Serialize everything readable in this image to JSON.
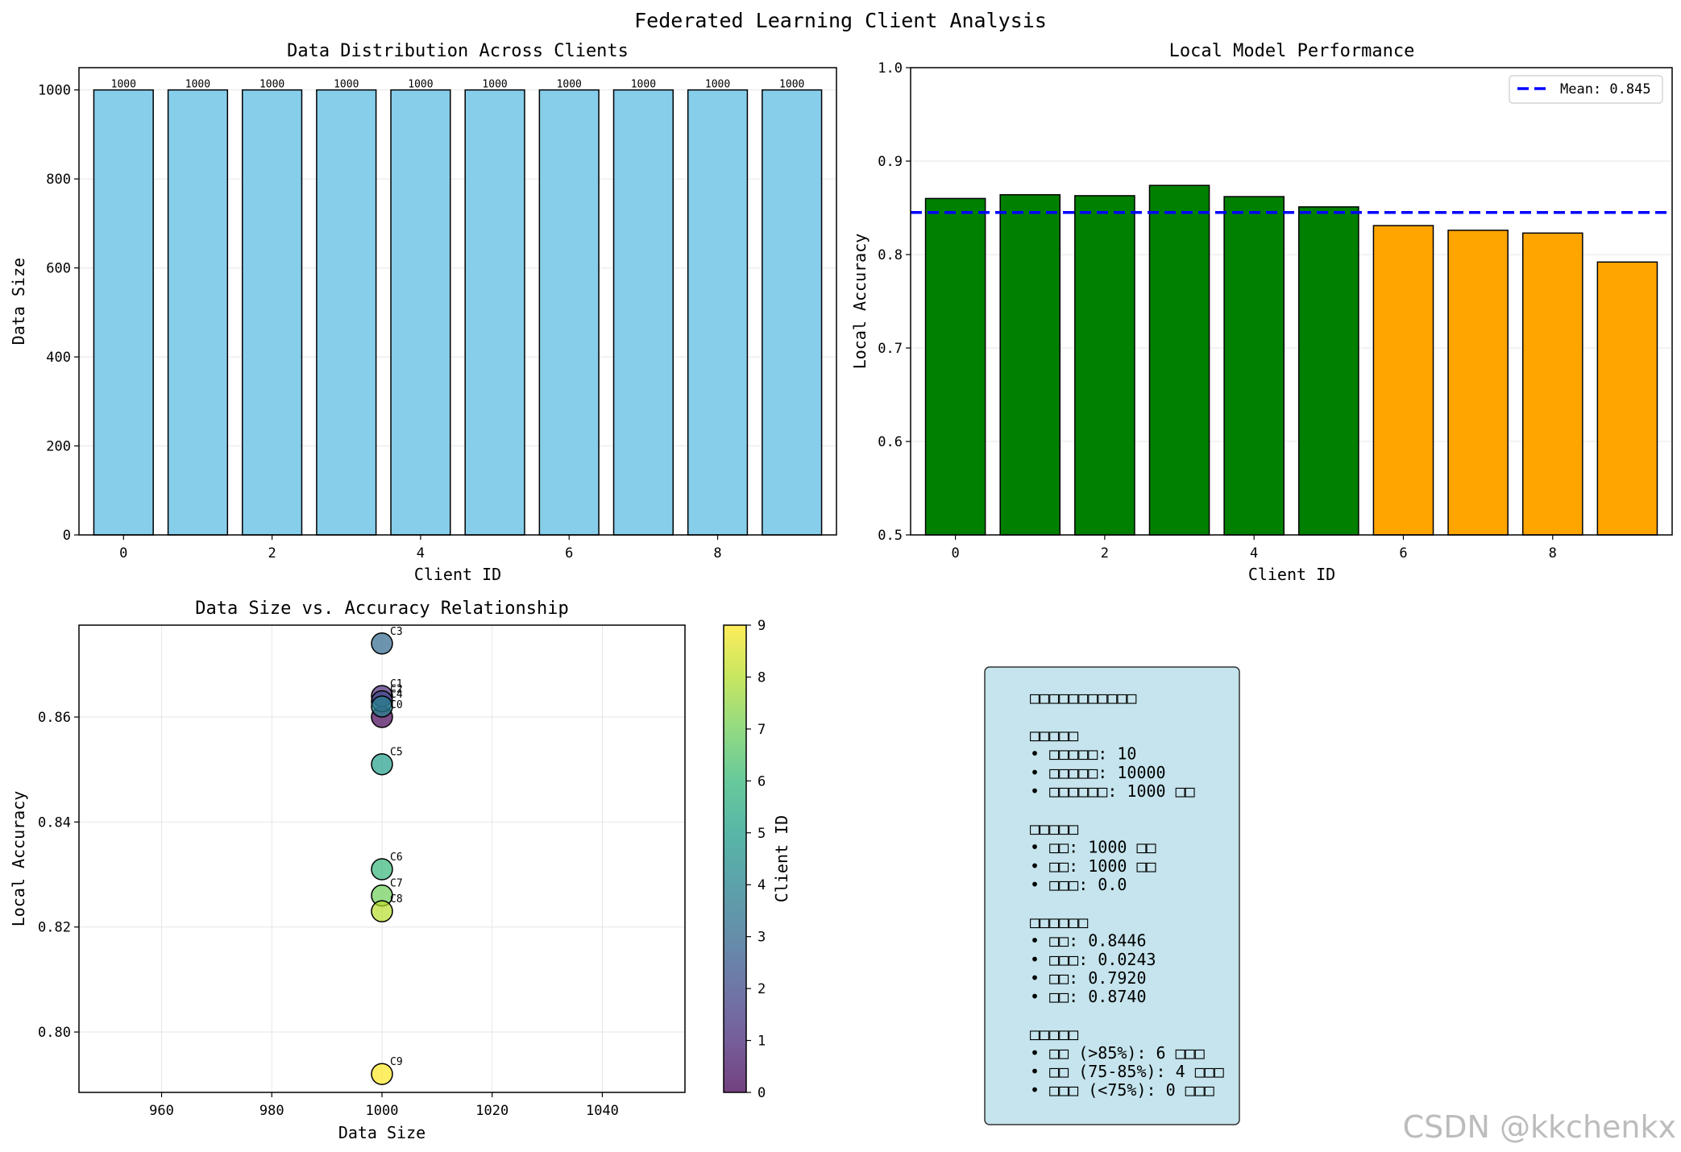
{
  "figure": {
    "title": "Federated Learning Client Analysis",
    "watermark": "CSDN @kkchenkx"
  },
  "chart_data": [
    {
      "type": "bar",
      "title": "Data Distribution Across Clients",
      "xlabel": "Client ID",
      "ylabel": "Data Size",
      "x": [
        0,
        1,
        2,
        3,
        4,
        5,
        6,
        7,
        8,
        9
      ],
      "values": [
        1000,
        1000,
        1000,
        1000,
        1000,
        1000,
        1000,
        1000,
        1000,
        1000
      ],
      "data_labels": [
        "1000",
        "1000",
        "1000",
        "1000",
        "1000",
        "1000",
        "1000",
        "1000",
        "1000",
        "1000"
      ],
      "bar_color": "#87ceeb",
      "ylim": [
        0,
        1050
      ],
      "xlim": [
        -0.6,
        9.6
      ],
      "yticks": [
        0,
        200,
        400,
        600,
        800,
        1000
      ],
      "xticks": [
        0,
        2,
        4,
        6,
        8
      ],
      "grid": true
    },
    {
      "type": "bar",
      "title": "Local Model Performance",
      "xlabel": "Client ID",
      "ylabel": "Local Accuracy",
      "x": [
        0,
        1,
        2,
        3,
        4,
        5,
        6,
        7,
        8,
        9
      ],
      "values": [
        0.86,
        0.864,
        0.863,
        0.874,
        0.862,
        0.851,
        0.831,
        0.826,
        0.823,
        0.792
      ],
      "colors": [
        "#008000",
        "#008000",
        "#008000",
        "#008000",
        "#008000",
        "#008000",
        "#ffa500",
        "#ffa500",
        "#ffa500",
        "#ffa500"
      ],
      "mean_line": {
        "value": 0.845,
        "label": "Mean: 0.845",
        "color": "#0000ff"
      },
      "legend": "top-right",
      "ylim": [
        0.5,
        1.0
      ],
      "xlim": [
        -0.6,
        9.6
      ],
      "yticks": [
        "0.5",
        "0.6",
        "0.7",
        "0.8",
        "0.9",
        "1.0"
      ],
      "xticks": [
        0,
        2,
        4,
        6,
        8
      ],
      "grid": true
    },
    {
      "type": "scatter",
      "title": "Data Size vs. Accuracy Relationship",
      "xlabel": "Data Size",
      "ylabel": "Local Accuracy",
      "colorbar_label": "Client ID",
      "colormap": "viridis",
      "points": [
        {
          "label": "C0",
          "client": 0,
          "x": 1000,
          "y": 0.86
        },
        {
          "label": "C1",
          "client": 1,
          "x": 1000,
          "y": 0.864
        },
        {
          "label": "C2",
          "client": 2,
          "x": 1000,
          "y": 0.863
        },
        {
          "label": "C3",
          "client": 3,
          "x": 1000,
          "y": 0.874
        },
        {
          "label": "C4",
          "client": 4,
          "x": 1000,
          "y": 0.862
        },
        {
          "label": "C5",
          "client": 5,
          "x": 1000,
          "y": 0.851
        },
        {
          "label": "C6",
          "client": 6,
          "x": 1000,
          "y": 0.831
        },
        {
          "label": "C7",
          "client": 7,
          "x": 1000,
          "y": 0.826
        },
        {
          "label": "C8",
          "client": 8,
          "x": 1000,
          "y": 0.823
        },
        {
          "label": "C9",
          "client": 9,
          "x": 1000,
          "y": 0.792
        }
      ],
      "xlim": [
        945,
        1055
      ],
      "ylim": [
        0.7885,
        0.8775
      ],
      "xticks": [
        960,
        980,
        1000,
        1020,
        1040
      ],
      "yticks": [
        "0.80",
        "0.82",
        "0.84",
        "0.86"
      ],
      "colorbar_ticks": [
        0,
        1,
        2,
        3,
        4,
        5,
        6,
        7,
        8,
        9
      ],
      "grid": true
    }
  ],
  "summary_box": {
    "lines": [
      "□□□□□□□□□□□",
      "",
      "□□□□□",
      "• □□□□□: 10",
      "• □□□□□: 10000",
      "• □□□□□□: 1000 □□",
      "",
      "□□□□□",
      "• □□: 1000 □□",
      "• □□: 1000 □□",
      "• □□□: 0.0",
      "",
      "□□□□□□",
      "• □□: 0.8446",
      "• □□□: 0.0243",
      "• □□: 0.7920",
      "• □□: 0.8740",
      "",
      "□□□□□",
      "• □□ (>85%): 6 □□□",
      "• □□ (75-85%): 4 □□□",
      "• □□□ (<75%): 0 □□□"
    ],
    "background": "#add8e6"
  }
}
